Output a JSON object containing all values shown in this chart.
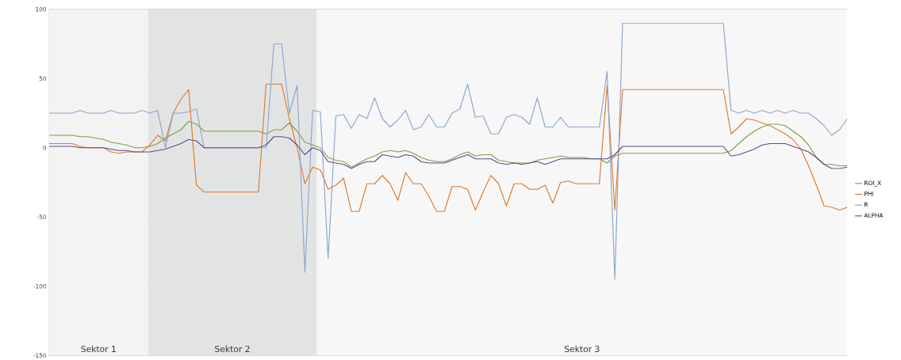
{
  "chart_data": {
    "type": "line",
    "ylim": [
      -150,
      100
    ],
    "yticks": [
      100,
      50,
      0,
      -50,
      -100,
      -150
    ],
    "tick_labels": "y",
    "grid": "y",
    "legend": "right",
    "marker": "none",
    "line_style": "solid",
    "categories": [
      null,
      null,
      null,
      null,
      null,
      null,
      null,
      null,
      null,
      null,
      null,
      null,
      null,
      null,
      null,
      null,
      null,
      null,
      null,
      null,
      null,
      null,
      null,
      null,
      null,
      null,
      null,
      null,
      null,
      null,
      null,
      null,
      null,
      null,
      null,
      null,
      null,
      null,
      null,
      null,
      null,
      null,
      null,
      null,
      null,
      null,
      null,
      null,
      null,
      null,
      null,
      null,
      null,
      null,
      null,
      null,
      null,
      null,
      null,
      null,
      null,
      null,
      null,
      null,
      null,
      null,
      null,
      null,
      null,
      null,
      null,
      null,
      null,
      null,
      null,
      null,
      null,
      null,
      null,
      null,
      null,
      null,
      null,
      null,
      null,
      null,
      null,
      null,
      null,
      null,
      null,
      null,
      null,
      null,
      null,
      null,
      null,
      null,
      null,
      null,
      null,
      null,
      null,
      null
    ],
    "annotations": [
      "Sektor 1",
      "Sektor 2",
      "Sektor 3"
    ],
    "series": [
      {
        "name": "ROI_X",
        "color": "#77a442",
        "values": [
          9,
          9,
          9,
          9,
          8,
          8,
          7,
          6,
          4,
          3,
          2,
          0,
          0,
          1,
          3,
          7,
          10,
          13,
          19,
          17,
          12,
          12,
          12,
          12,
          12,
          12,
          12,
          12,
          10,
          13,
          13,
          18,
          12,
          4,
          2,
          0,
          -7,
          -9,
          -10,
          -14,
          -11,
          -8,
          -6,
          -3,
          -2,
          -3,
          -2,
          -4,
          -7,
          -9,
          -10,
          -10,
          -8,
          -5,
          -3,
          -6,
          -5,
          -5,
          -9,
          -10,
          -11,
          -11,
          -11,
          -9,
          -8,
          -7,
          -6,
          -7,
          -7,
          -7,
          -8,
          -8,
          -11,
          -6,
          -4,
          -4,
          -4,
          -4,
          -4,
          -4,
          -4,
          -4,
          -4,
          -4,
          -4,
          -4,
          -4,
          -4,
          -2,
          3,
          8,
          12,
          15,
          17,
          17,
          16,
          12,
          8,
          2,
          -7,
          -12,
          -12,
          -13,
          -13
        ]
      },
      {
        "name": "PHI",
        "color": "#e07b2c",
        "values": [
          3,
          3,
          3,
          3,
          1,
          0,
          0,
          0,
          -3,
          -4,
          -3,
          -3,
          -3,
          2,
          9,
          5,
          25,
          35,
          42,
          -27,
          -32,
          -32,
          -32,
          -32,
          -32,
          -32,
          -32,
          -32,
          46,
          46,
          46,
          21,
          0,
          -26,
          -14,
          -16,
          -30,
          -27,
          -22,
          -46,
          -46,
          -26,
          -26,
          -20,
          -26,
          -38,
          -18,
          -26,
          -26,
          -35,
          -46,
          -46,
          -28,
          -28,
          -30,
          -45,
          -32,
          -20,
          -26,
          -42,
          -26,
          -26,
          -30,
          -30,
          -27,
          -40,
          -25,
          -24,
          -26,
          -26,
          -26,
          -26,
          45,
          -45,
          42,
          42,
          42,
          42,
          42,
          42,
          42,
          42,
          42,
          42,
          42,
          42,
          42,
          42,
          10,
          15,
          21,
          20,
          18,
          16,
          13,
          10,
          6,
          -1,
          -13,
          -27,
          -42,
          -43,
          -45,
          -43
        ]
      },
      {
        "name": "R",
        "color": "#8ea6cf",
        "values": [
          25,
          25,
          25,
          25,
          27,
          25,
          25,
          25,
          27,
          25,
          25,
          25,
          27,
          25,
          27,
          0,
          25,
          25,
          26,
          28,
          0,
          0,
          0,
          0,
          0,
          0,
          0,
          0,
          0,
          75,
          75,
          25,
          45,
          -90,
          27,
          26,
          -80,
          23,
          24,
          14,
          24,
          21,
          36,
          21,
          15,
          20,
          27,
          13,
          15,
          24,
          15,
          15,
          25,
          28,
          46,
          22,
          23,
          10,
          10,
          22,
          24,
          22,
          17,
          36,
          15,
          15,
          22,
          15,
          15,
          15,
          15,
          15,
          55,
          -95,
          90,
          90,
          90,
          90,
          90,
          90,
          90,
          90,
          90,
          90,
          90,
          90,
          90,
          90,
          27,
          25,
          27,
          25,
          27,
          25,
          27,
          25,
          27,
          25,
          25,
          21,
          16,
          9,
          13,
          21
        ]
      },
      {
        "name": "ALPHA",
        "color": "#604a8b",
        "values": [
          1,
          1,
          1,
          1,
          0,
          0,
          0,
          0,
          -1,
          -2,
          -2,
          -3,
          -3,
          -3,
          -2,
          -1,
          1,
          3,
          6,
          5,
          0,
          0,
          0,
          0,
          0,
          0,
          0,
          0,
          2,
          8,
          8,
          7,
          2,
          -5,
          0,
          -2,
          -10,
          -11,
          -12,
          -15,
          -12,
          -10,
          -10,
          -5,
          -6,
          -7,
          -5,
          -6,
          -10,
          -11,
          -11,
          -11,
          -9,
          -7,
          -5,
          -8,
          -8,
          -8,
          -11,
          -12,
          -11,
          -12,
          -11,
          -10,
          -12,
          -10,
          -8,
          -8,
          -8,
          -8,
          -8,
          -8,
          -8,
          -5,
          1,
          1,
          1,
          1,
          1,
          1,
          1,
          1,
          1,
          1,
          1,
          1,
          1,
          1,
          -6,
          -5,
          -3,
          -1,
          2,
          3,
          3,
          3,
          1,
          -1,
          -3,
          -7,
          -12,
          -15,
          -15,
          -14
        ]
      }
    ]
  }
}
